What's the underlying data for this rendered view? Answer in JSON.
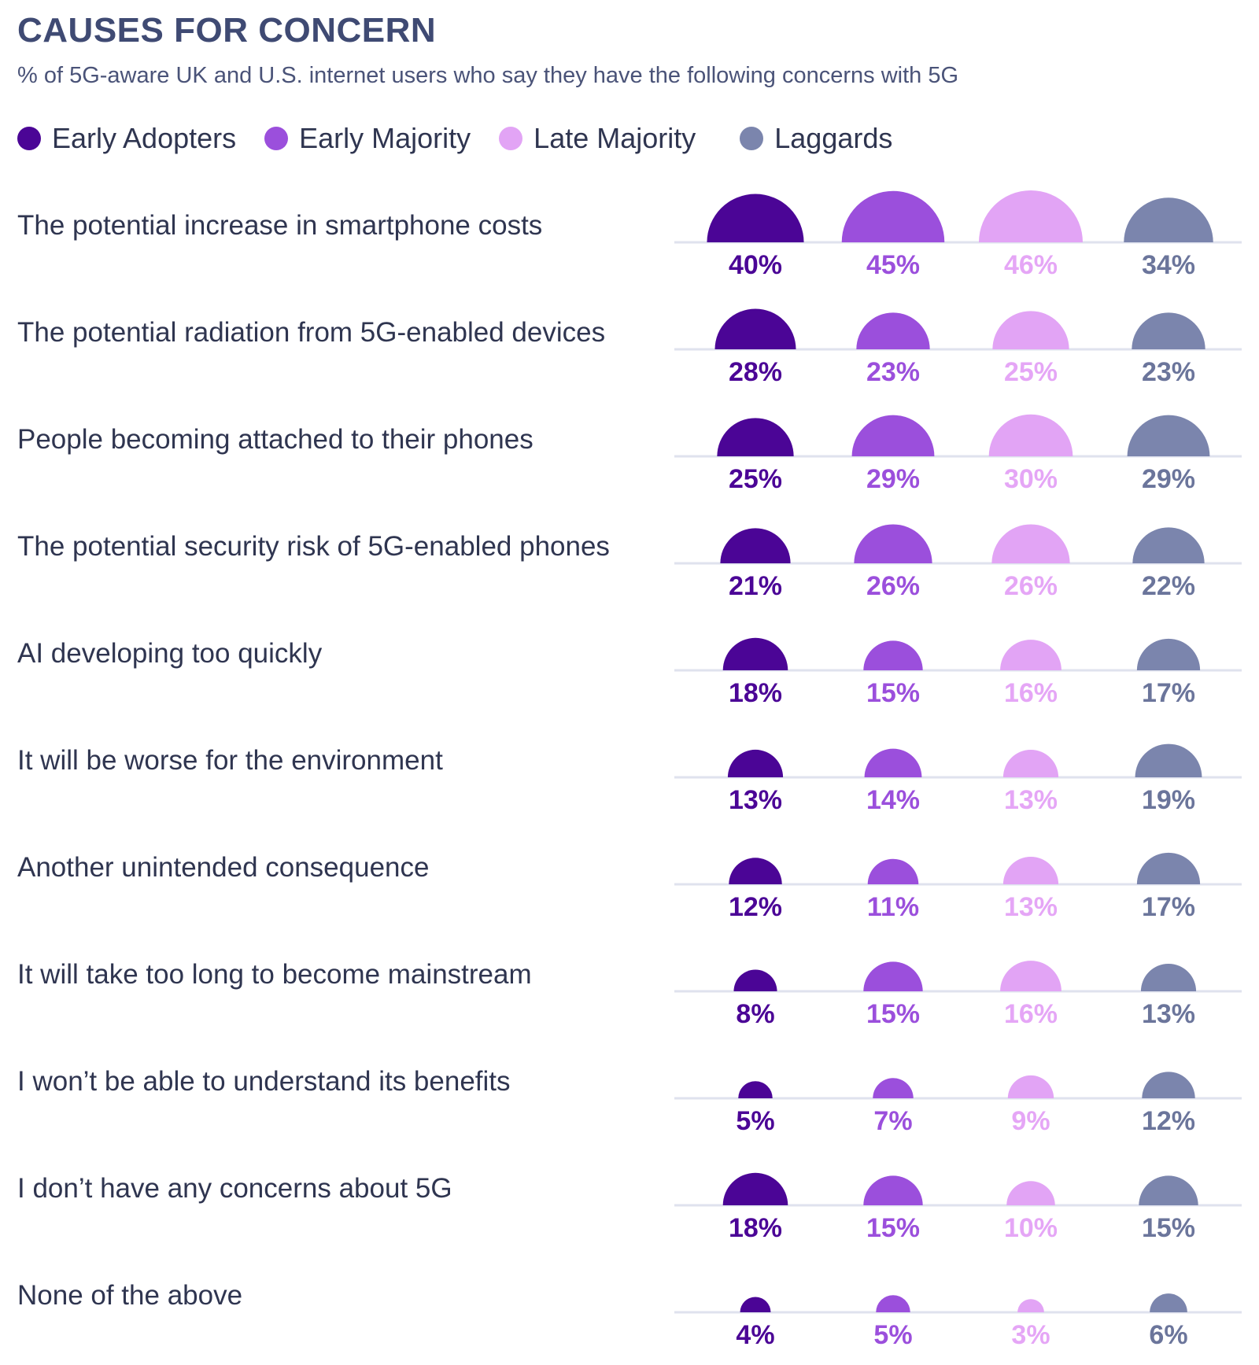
{
  "title": "CAUSES FOR CONCERN",
  "subtitle": "% of 5G-aware UK and U.S. internet users who say they have the following concerns with 5G",
  "chart_data": {
    "type": "semicircle-grid",
    "title": "CAUSES FOR CONCERN",
    "subtitle": "% of 5G-aware UK and U.S. internet users who say they have the following concerns with 5G",
    "legend_placement": "top-left",
    "series": [
      {
        "name": "Early Adopters",
        "color": "#4b0596",
        "label_color": "#4b0596",
        "values": [
          40,
          28,
          25,
          21,
          18,
          13,
          12,
          8,
          5,
          18,
          4
        ]
      },
      {
        "name": "Early Majority",
        "color": "#9b4fdc",
        "label_color": "#9b4fdc",
        "values": [
          45,
          23,
          29,
          26,
          15,
          14,
          11,
          15,
          7,
          15,
          5
        ]
      },
      {
        "name": "Late Majority",
        "color": "#e2a4f5",
        "label_color": "#e5a6f6",
        "values": [
          46,
          25,
          30,
          26,
          16,
          13,
          13,
          16,
          9,
          10,
          3
        ]
      },
      {
        "name": "Laggards",
        "color": "#7b85ad",
        "label_color": "#6b759b",
        "values": [
          34,
          23,
          29,
          22,
          17,
          19,
          17,
          13,
          12,
          15,
          6
        ]
      }
    ],
    "categories": [
      "The potential increase in smartphone costs",
      "The potential radiation from 5G-enabled devices",
      "People becoming attached to their phones",
      "The potential security risk of 5G-enabled phones",
      "AI developing too quickly",
      "It will be worse for the environment",
      "Another unintended consequence",
      "It will take too long to become mainstream",
      "I won’t be able to understand its benefits",
      "I don’t have any concerns about 5G",
      "None of the above"
    ],
    "value_suffix": "%"
  }
}
